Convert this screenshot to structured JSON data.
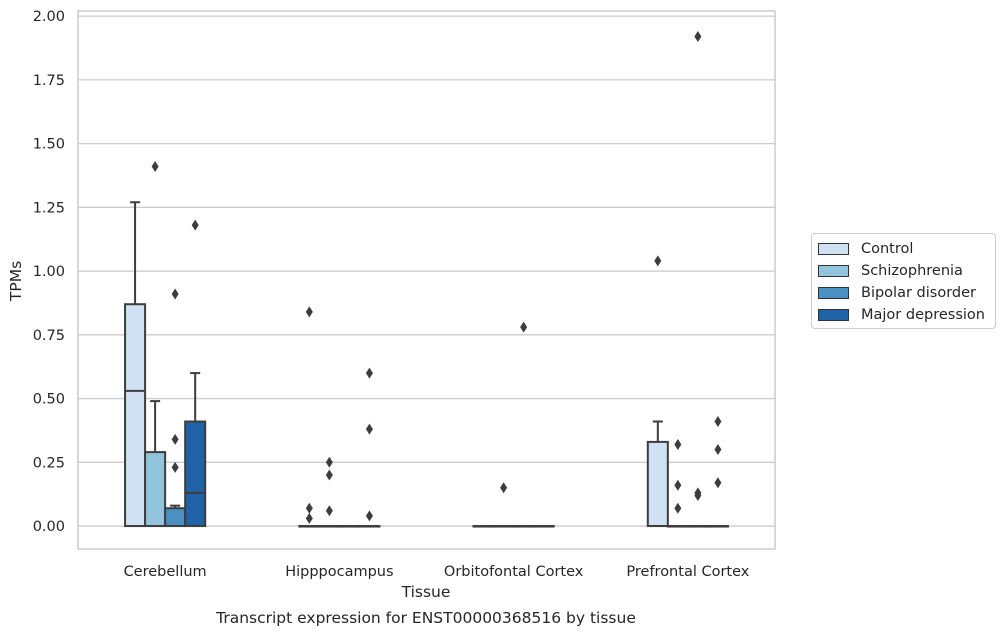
{
  "chart_data": {
    "type": "box",
    "title": "Transcript expression for ENST00000368516 by tissue",
    "xlabel": "Tissue",
    "ylabel": "TPMs",
    "ylim": [
      -0.09,
      2.02
    ],
    "yticks": [
      0,
      0.25,
      0.5,
      0.75,
      1.0,
      1.25,
      1.5,
      1.75,
      2.0
    ],
    "ytick_labels": [
      "0.00",
      "0.25",
      "0.50",
      "0.75",
      "1.00",
      "1.25",
      "1.50",
      "1.75",
      "2.00"
    ],
    "categories": [
      "Cerebellum",
      "Hipppocampus",
      "Orbitofontal Cortex",
      "Prefrontal Cortex"
    ],
    "grid": "horizontal",
    "legend_position": "right",
    "series": [
      {
        "name": "Control",
        "color": "#cfe1f2",
        "boxes": [
          {
            "q1": 0,
            "median": 0.53,
            "q3": 0.87,
            "whisker_low": 0,
            "whisker_high": 1.27,
            "outliers": []
          },
          {
            "q1": 0,
            "median": 0,
            "q3": 0,
            "whisker_low": 0,
            "whisker_high": 0,
            "outliers": [
              0.84,
              0.07,
              0.03
            ]
          },
          {
            "q1": 0,
            "median": 0,
            "q3": 0,
            "whisker_low": 0,
            "whisker_high": 0,
            "outliers": []
          },
          {
            "q1": 0,
            "median": 0,
            "q3": 0.33,
            "whisker_low": 0,
            "whisker_high": 0.41,
            "outliers": [
              1.04
            ]
          }
        ]
      },
      {
        "name": "Schizophrenia",
        "color": "#93c4de",
        "boxes": [
          {
            "q1": 0,
            "median": 0,
            "q3": 0.29,
            "whisker_low": 0,
            "whisker_high": 0.49,
            "outliers": [
              1.41
            ]
          },
          {
            "q1": 0,
            "median": 0,
            "q3": 0,
            "whisker_low": 0,
            "whisker_high": 0,
            "outliers": [
              0.25,
              0.2,
              0.06
            ]
          },
          {
            "q1": 0,
            "median": 0,
            "q3": 0,
            "whisker_low": 0,
            "whisker_high": 0,
            "outliers": [
              0.15
            ]
          },
          {
            "q1": 0,
            "median": 0,
            "q3": 0,
            "whisker_low": 0,
            "whisker_high": 0,
            "outliers": [
              0.32,
              0.16,
              0.07
            ]
          }
        ]
      },
      {
        "name": "Bipolar disorder",
        "color": "#4a90c2",
        "boxes": [
          {
            "q1": 0,
            "median": 0,
            "q3": 0.07,
            "whisker_low": 0,
            "whisker_high": 0.08,
            "outliers": [
              0.91,
              0.34,
              0.23
            ]
          },
          {
            "q1": 0,
            "median": 0,
            "q3": 0,
            "whisker_low": 0,
            "whisker_high": 0,
            "outliers": []
          },
          {
            "q1": 0,
            "median": 0,
            "q3": 0,
            "whisker_low": 0,
            "whisker_high": 0,
            "outliers": [
              0.78
            ]
          },
          {
            "q1": 0,
            "median": 0,
            "q3": 0,
            "whisker_low": 0,
            "whisker_high": 0,
            "outliers": [
              1.92,
              0.13,
              0.12
            ]
          }
        ]
      },
      {
        "name": "Major depression",
        "color": "#1f62a8",
        "boxes": [
          {
            "q1": 0,
            "median": 0.13,
            "q3": 0.41,
            "whisker_low": 0,
            "whisker_high": 0.6,
            "outliers": [
              1.18
            ]
          },
          {
            "q1": 0,
            "median": 0,
            "q3": 0,
            "whisker_low": 0,
            "whisker_high": 0,
            "outliers": [
              0.6,
              0.38,
              0.04
            ]
          },
          {
            "q1": 0,
            "median": 0,
            "q3": 0,
            "whisker_low": 0,
            "whisker_high": 0,
            "outliers": []
          },
          {
            "q1": 0,
            "median": 0,
            "q3": 0,
            "whisker_low": 0,
            "whisker_high": 0,
            "outliers": [
              0.41,
              0.3,
              0.17
            ]
          }
        ]
      }
    ]
  }
}
